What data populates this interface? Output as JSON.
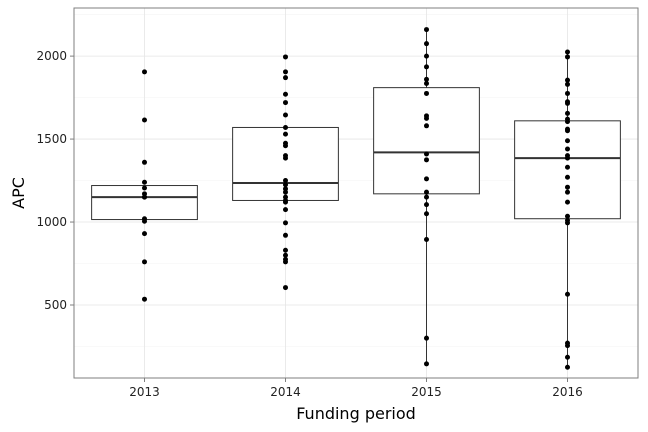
{
  "chart_data": {
    "type": "boxplot",
    "xlabel": "Funding period",
    "ylabel": "APC",
    "categories": [
      "2013",
      "2014",
      "2015",
      "2016"
    ],
    "ylim": [
      60,
      2290
    ],
    "yticks": [
      500,
      1000,
      1500,
      2000
    ],
    "grid": true,
    "legend": "none",
    "boxes": [
      {
        "category": "2013",
        "q1": 1015,
        "median": 1150,
        "q3": 1220,
        "whisker_low": 1015,
        "whisker_high": 1220
      },
      {
        "category": "2014",
        "q1": 1130,
        "median": 1235,
        "q3": 1570,
        "whisker_low": 1130,
        "whisker_high": 1570
      },
      {
        "category": "2015",
        "q1": 1170,
        "median": 1420,
        "q3": 1810,
        "whisker_low": 145,
        "whisker_high": 2160
      },
      {
        "category": "2016",
        "q1": 1020,
        "median": 1385,
        "q3": 1610,
        "whisker_low": 120,
        "whisker_high": 2025
      }
    ],
    "points": [
      {
        "category": "2013",
        "values": [
          1905,
          1615,
          1360,
          1240,
          1205,
          1170,
          1150,
          1150,
          1020,
          1005,
          930,
          760,
          535
        ]
      },
      {
        "category": "2014",
        "values": [
          1995,
          1905,
          1870,
          1770,
          1720,
          1645,
          1570,
          1530,
          1475,
          1460,
          1400,
          1385,
          1250,
          1225,
          1200,
          1180,
          1150,
          1130,
          1120,
          1075,
          995,
          920,
          830,
          800,
          775,
          760,
          605
        ]
      },
      {
        "category": "2015",
        "values": [
          2160,
          2075,
          2000,
          1935,
          1860,
          1835,
          1775,
          1640,
          1625,
          1580,
          1410,
          1375,
          1260,
          1180,
          1150,
          1105,
          1050,
          895,
          300,
          145
        ]
      },
      {
        "category": "2016",
        "values": [
          2025,
          1995,
          1855,
          1830,
          1775,
          1725,
          1715,
          1655,
          1620,
          1605,
          1560,
          1550,
          1490,
          1440,
          1400,
          1385,
          1330,
          1270,
          1210,
          1180,
          1120,
          1035,
          1010,
          995,
          565,
          270,
          255,
          185,
          125
        ]
      }
    ]
  }
}
